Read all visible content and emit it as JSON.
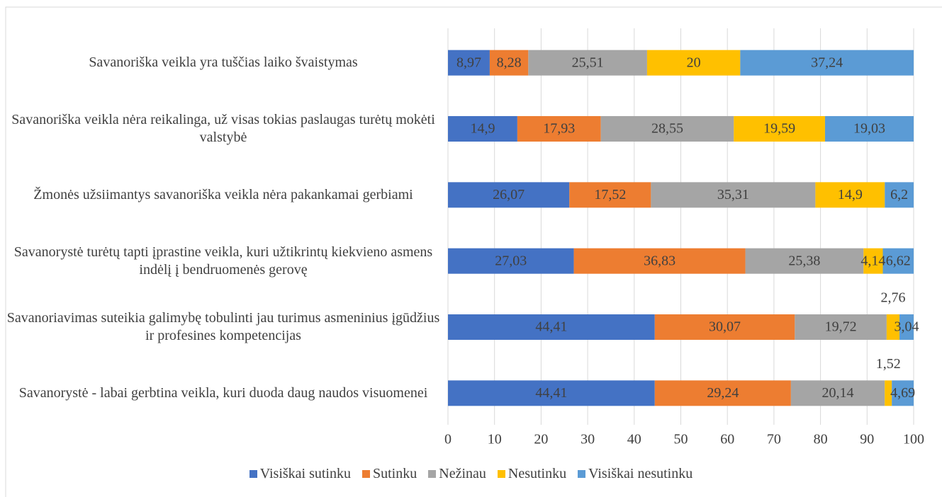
{
  "chart_data": {
    "type": "stacked_barh",
    "categories": [
      "Savanoriška veikla yra tuščias laiko švaistymas",
      "Savanoriška veikla nėra reikalinga, už visas tokias paslaugas turėtų mokėti valstybė",
      "Žmonės užsiimantys savanoriška veikla nėra pakankamai gerbiami",
      "Savanorystė turėtų tapti įprastine veikla, kuri užtikrintų kiekvieno asmens indėlį į bendruomenės gerovę",
      "Savanoriavimas suteikia galimybę tobulinti jau turimus asmeninius įgūdžius ir profesines kompetencijas",
      "Savanorystė - labai gerbtina veikla, kuri duoda daug naudos visuomenei"
    ],
    "series": [
      {
        "name": "Visiškai sutinku",
        "color": "#4472c4",
        "values": [
          8.97,
          14.9,
          26.07,
          27.03,
          44.41,
          44.41
        ],
        "value_labels": [
          "8,97",
          "14,9",
          "26,07",
          "27,03",
          "44,41",
          "44,41"
        ]
      },
      {
        "name": "Sutinku",
        "color": "#ed7d31",
        "values": [
          8.28,
          17.93,
          17.52,
          36.83,
          30.07,
          29.24
        ],
        "value_labels": [
          "8,28",
          "17,93",
          "17,52",
          "36,83",
          "30,07",
          "29,24"
        ]
      },
      {
        "name": "Nežinau",
        "color": "#a5a5a5",
        "values": [
          25.51,
          28.55,
          35.31,
          25.38,
          19.72,
          20.14
        ],
        "value_labels": [
          "25,51",
          "28,55",
          "35,31",
          "25,38",
          "19,72",
          "20,14"
        ]
      },
      {
        "name": "Nesutinku",
        "color": "#ffc000",
        "values": [
          20,
          19.59,
          14.9,
          4.14,
          2.76,
          1.52
        ],
        "value_labels": [
          "20",
          "19,59",
          "14,9",
          "4,14",
          "2,76",
          "1,52"
        ]
      },
      {
        "name": "Visiškai nesutinku",
        "color": "#5b9bd5",
        "values": [
          37.24,
          19.03,
          6.2,
          6.62,
          3.04,
          4.69
        ],
        "value_labels": [
          "37,24",
          "19,03",
          "6,2",
          "6,62",
          "3,04",
          "4,69"
        ]
      }
    ],
    "xlim": [
      0,
      100
    ],
    "xticks": [
      0,
      10,
      20,
      30,
      40,
      50,
      60,
      70,
      80,
      90,
      100
    ],
    "grid": true,
    "legend": "bottom"
  }
}
